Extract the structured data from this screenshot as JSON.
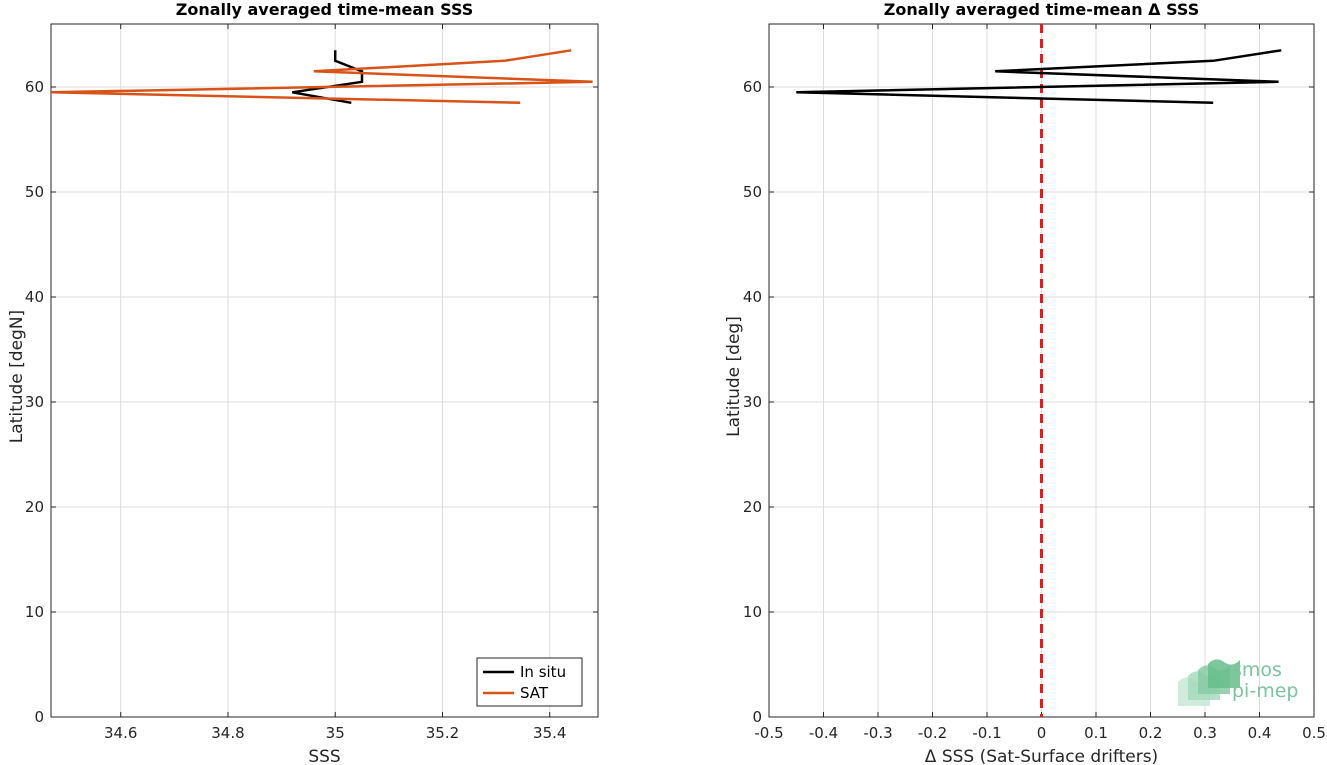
{
  "chart_data": [
    {
      "type": "line",
      "title": "Zonally averaged time-mean SSS",
      "xlabel": "SSS",
      "ylabel": "Latitude [degN]",
      "xlim": [
        34.47,
        35.49
      ],
      "ylim": [
        0,
        66
      ],
      "xticks": [
        34.6,
        34.8,
        35,
        35.2,
        35.4
      ],
      "xtick_labels": [
        "34.6",
        "34.8",
        "35",
        "35.2",
        "35.4"
      ],
      "yticks": [
        0,
        10,
        20,
        30,
        40,
        50,
        60
      ],
      "ytick_labels": [
        "0",
        "10",
        "20",
        "30",
        "40",
        "50",
        "60"
      ],
      "grid": true,
      "legend": {
        "position": "bottom-right",
        "entries": [
          "In situ",
          "SAT"
        ]
      },
      "series": [
        {
          "name": "In situ",
          "color": "#000000",
          "points": [
            [
              35.03,
              58.5
            ],
            [
              34.92,
              59.5
            ],
            [
              35.05,
              60.5
            ],
            [
              35.05,
              61.5
            ],
            [
              35.0,
              62.5
            ],
            [
              35.0,
              63.5
            ]
          ]
        },
        {
          "name": "SAT",
          "color": "#d95319",
          "points": [
            [
              35.345,
              58.5
            ],
            [
              34.47,
              59.5
            ],
            [
              35.48,
              60.5
            ],
            [
              34.96,
              61.5
            ],
            [
              35.315,
              62.5
            ],
            [
              35.44,
              63.5
            ]
          ]
        }
      ]
    },
    {
      "type": "line",
      "title": "Zonally averaged time-mean Δ SSS",
      "xlabel": "Δ SSS (Sat-Surface drifters)",
      "ylabel": "Latitude [deg]",
      "xlim": [
        -0.5,
        0.5
      ],
      "ylim": [
        0,
        66
      ],
      "xticks": [
        -0.5,
        -0.4,
        -0.3,
        -0.2,
        -0.1,
        0,
        0.1,
        0.2,
        0.3,
        0.4,
        0.5
      ],
      "xtick_labels": [
        "-0.5",
        "-0.4",
        "-0.3",
        "-0.2",
        "-0.1",
        "0",
        "0.1",
        "0.2",
        "0.3",
        "0.4",
        "0.5"
      ],
      "yticks": [
        0,
        10,
        20,
        30,
        40,
        50,
        60
      ],
      "ytick_labels": [
        "0",
        "10",
        "20",
        "30",
        "40",
        "50",
        "60"
      ],
      "grid": true,
      "reference_line": {
        "x": 0,
        "color": "#e41a1c",
        "style": "dashed"
      },
      "series": [
        {
          "color": "#000000",
          "points": [
            [
              0.315,
              58.5
            ],
            [
              -0.45,
              59.5
            ],
            [
              0.435,
              60.5
            ],
            [
              -0.085,
              61.5
            ],
            [
              0.315,
              62.5
            ],
            [
              0.44,
              63.5
            ]
          ]
        }
      ]
    }
  ],
  "logo": {
    "line1": "smos",
    "line2": "pi-mep"
  }
}
